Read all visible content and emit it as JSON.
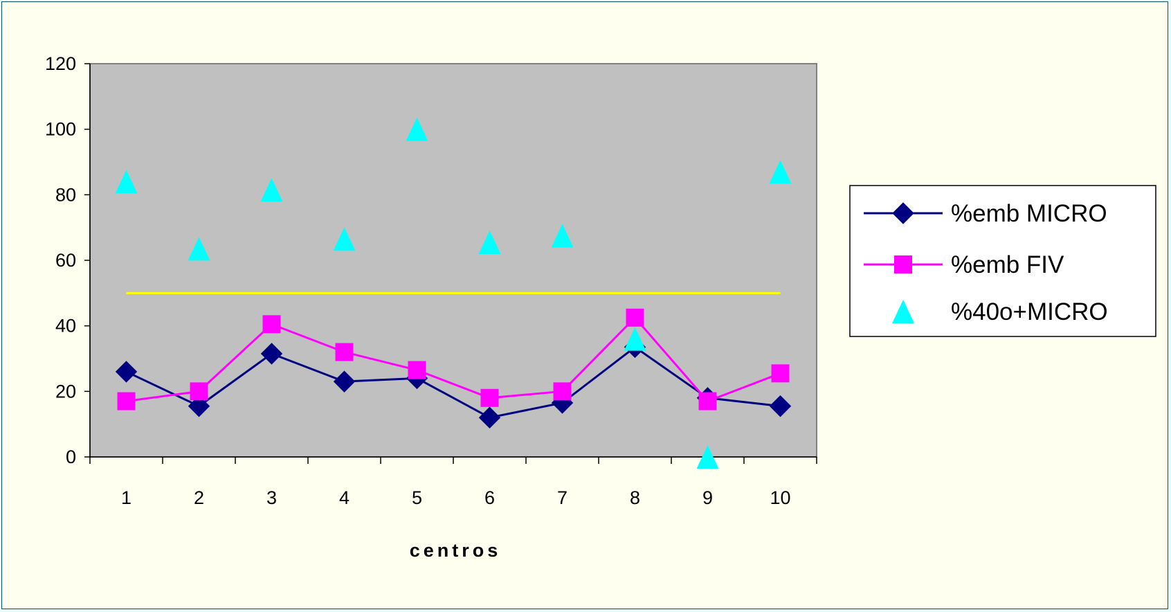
{
  "chart_data": {
    "type": "line",
    "categories": [
      "1",
      "2",
      "3",
      "4",
      "5",
      "6",
      "7",
      "8",
      "9",
      "10"
    ],
    "xlabel": "centros",
    "ylabel": "",
    "ylim": [
      0,
      120
    ],
    "yticks": [
      0,
      20,
      40,
      60,
      80,
      100,
      120
    ],
    "grid": false,
    "plot_background": "#c0c0c0",
    "legend_position": "right",
    "series": [
      {
        "name": "%emb MICRO",
        "style": "line-diamond",
        "color": "#000080",
        "values": [
          26,
          15.5,
          31.5,
          23,
          24,
          12,
          16.5,
          33.5,
          18,
          15.5
        ]
      },
      {
        "name": "%emb FIV",
        "style": "line-square",
        "color": "#ff00ff",
        "values": [
          17,
          20,
          40.5,
          32,
          26.5,
          18,
          20,
          42.5,
          17,
          25.5
        ]
      },
      {
        "name": "%40o+MICRO",
        "style": "triangle-markers",
        "color": "#00ffff",
        "values": [
          84,
          63.5,
          81.5,
          66.5,
          100,
          65.5,
          67.5,
          36,
          0,
          87
        ]
      }
    ],
    "reference_line": {
      "value": 50,
      "color": "#ffff00"
    }
  }
}
